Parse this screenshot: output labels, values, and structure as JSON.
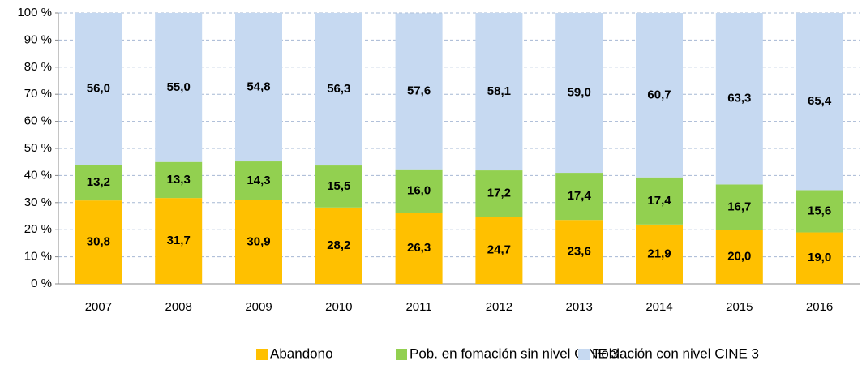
{
  "chart_data": {
    "type": "bar",
    "stacked": true,
    "categories": [
      "2007",
      "2008",
      "2009",
      "2010",
      "2011",
      "2012",
      "2013",
      "2014",
      "2015",
      "2016"
    ],
    "series": [
      {
        "name": "Abandono",
        "color": "#ffc000",
        "values": [
          30.8,
          31.7,
          30.9,
          28.2,
          26.3,
          24.7,
          23.6,
          21.9,
          20.0,
          19.0
        ],
        "value_labels": [
          "30,8",
          "31,7",
          "30,9",
          "28,2",
          "26,3",
          "24,7",
          "23,6",
          "21,9",
          "20,0",
          "19,0"
        ]
      },
      {
        "name": "Pob. en fomación sin nivel CINE 3",
        "color": "#92d050",
        "values": [
          13.2,
          13.3,
          14.3,
          15.5,
          16.0,
          17.2,
          17.4,
          17.4,
          16.7,
          15.6
        ],
        "value_labels": [
          "13,2",
          "13,3",
          "14,3",
          "15,5",
          "16,0",
          "17,2",
          "17,4",
          "17,4",
          "16,7",
          "15,6"
        ]
      },
      {
        "name": "Población con nivel CINE 3",
        "color": "#c6d9f1",
        "values": [
          56.0,
          55.0,
          54.8,
          56.3,
          57.6,
          58.1,
          59.0,
          60.7,
          63.3,
          65.4
        ],
        "value_labels": [
          "56,0",
          "55,0",
          "54,8",
          "56,3",
          "57,6",
          "58,1",
          "59,0",
          "60,7",
          "63,3",
          "65,4"
        ]
      }
    ],
    "ylim": [
      0,
      100
    ],
    "yticks": [
      {
        "value": 0,
        "label": "0 %"
      },
      {
        "value": 10,
        "label": "10 %"
      },
      {
        "value": 20,
        "label": "20 %"
      },
      {
        "value": 30,
        "label": "30 %"
      },
      {
        "value": 40,
        "label": "40 %"
      },
      {
        "value": 50,
        "label": "50 %"
      },
      {
        "value": 60,
        "label": "60 %"
      },
      {
        "value": 70,
        "label": "70 %"
      },
      {
        "value": 80,
        "label": "80 %"
      },
      {
        "value": 90,
        "label": "90 %"
      },
      {
        "value": 100,
        "label": "100 %"
      }
    ],
    "grid": true,
    "legend": "bottom"
  }
}
